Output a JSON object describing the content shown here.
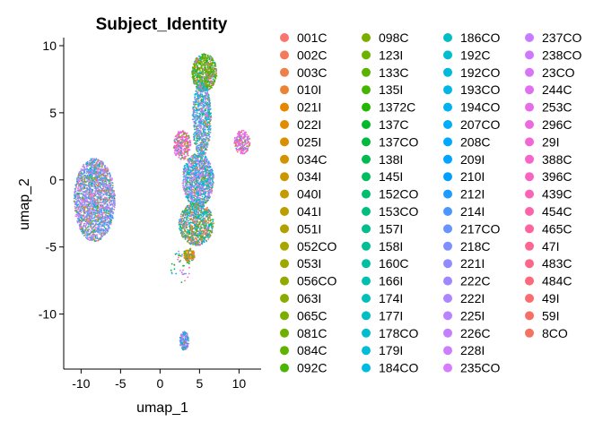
{
  "chart_data": {
    "type": "scatter",
    "title": "Subject_Identity",
    "xlabel": "umap_1",
    "ylabel": "umap_2",
    "xlim": [
      -12.2,
      12.8
    ],
    "ylim": [
      -14.1,
      10.6
    ],
    "x_ticks": [
      "-10",
      "-5",
      "0",
      "5",
      "10"
    ],
    "y_ticks": [
      "10",
      "5",
      "0",
      "-5",
      "-10"
    ],
    "x_tick_values": [
      -10,
      -5,
      0,
      5,
      10
    ],
    "y_tick_values": [
      10,
      5,
      0,
      -5,
      -10
    ],
    "grid": false,
    "legend_position": "right",
    "legend_columns": 4,
    "clusters": [
      {
        "name": "left blob",
        "cx": -8.3,
        "cy": -1.5,
        "rx": 2.6,
        "ry": 3.1,
        "n": 2200,
        "dominant": [
          "#9E8DF2",
          "#6E9BF5",
          "#EC82F0",
          "#35A9F0"
        ]
      },
      {
        "name": "top green",
        "cx": 5.6,
        "cy": 8.0,
        "rx": 1.6,
        "ry": 1.4,
        "n": 700,
        "dominant": [
          "#5BB300",
          "#2DB300",
          "#7AAE00"
        ]
      },
      {
        "name": "column upper",
        "cx": 5.3,
        "cy": 4.5,
        "rx": 1.2,
        "ry": 2.8,
        "n": 800,
        "dominant": [
          "#3AA9F0",
          "#00BFC4",
          "#9E8DF2"
        ]
      },
      {
        "name": "left pink",
        "cx": 2.8,
        "cy": 2.6,
        "rx": 1.1,
        "ry": 1.1,
        "n": 300,
        "dominant": [
          "#F067E0",
          "#E76BF3",
          "#FF62BC"
        ]
      },
      {
        "name": "right pink",
        "cx": 10.4,
        "cy": 2.8,
        "rx": 1.0,
        "ry": 0.9,
        "n": 220,
        "dominant": [
          "#F067E0",
          "#FF62BC",
          "#E76BF3"
        ]
      },
      {
        "name": "column middle",
        "cx": 4.8,
        "cy": 0.0,
        "rx": 2.0,
        "ry": 2.0,
        "n": 1200,
        "dominant": [
          "#00B4F0",
          "#9E8DF2",
          "#00BFC4",
          "#EC82F0"
        ]
      },
      {
        "name": "column lower",
        "cx": 4.6,
        "cy": -3.3,
        "rx": 2.2,
        "ry": 1.6,
        "n": 900,
        "dominant": [
          "#00C19A",
          "#00B0F6",
          "#F8766D",
          "#7CAE00"
        ]
      },
      {
        "name": "bottom orange",
        "cx": 3.7,
        "cy": -5.6,
        "rx": 0.7,
        "ry": 0.5,
        "n": 150,
        "dominant": [
          "#D89000",
          "#E58700",
          "#C99800"
        ]
      },
      {
        "name": "low cluster",
        "cx": 3.1,
        "cy": -12.0,
        "rx": 0.6,
        "ry": 0.7,
        "n": 160,
        "dominant": [
          "#9E8DF2",
          "#E76BF3",
          "#00A9FF"
        ]
      },
      {
        "name": "stray points",
        "cx": 2.5,
        "cy": -6.5,
        "rx": 1.3,
        "ry": 1.3,
        "n": 40,
        "dominant": [
          "#00BA38",
          "#619CFF",
          "#FF61C3"
        ]
      }
    ],
    "legend_title": "",
    "series": [
      {
        "name": "001C",
        "color": "#F8766D"
      },
      {
        "name": "002C",
        "color": "#F47A5C"
      },
      {
        "name": "003C",
        "color": "#F07E4B"
      },
      {
        "name": "010I",
        "color": "#EB8335"
      },
      {
        "name": "021I",
        "color": "#E58700"
      },
      {
        "name": "022I",
        "color": "#E08B00"
      },
      {
        "name": "025I",
        "color": "#DA8F00"
      },
      {
        "name": "034C",
        "color": "#D39200"
      },
      {
        "name": "034I",
        "color": "#CB9600"
      },
      {
        "name": "040I",
        "color": "#C39A00"
      },
      {
        "name": "041I",
        "color": "#BB9D00"
      },
      {
        "name": "051I",
        "color": "#B2A000"
      },
      {
        "name": "052CO",
        "color": "#A9A400"
      },
      {
        "name": "053I",
        "color": "#9FA600"
      },
      {
        "name": "056CO",
        "color": "#94A900"
      },
      {
        "name": "063I",
        "color": "#89AC00"
      },
      {
        "name": "065C",
        "color": "#7CAE00"
      },
      {
        "name": "081C",
        "color": "#6EB000"
      },
      {
        "name": "084C",
        "color": "#5EB300"
      },
      {
        "name": "092C",
        "color": "#49B500"
      },
      {
        "name": "098C",
        "color": "#7CAE00"
      },
      {
        "name": "123I",
        "color": "#6CB200"
      },
      {
        "name": "133C",
        "color": "#5BB300"
      },
      {
        "name": "135I",
        "color": "#45B500"
      },
      {
        "name": "1372C",
        "color": "#24B700"
      },
      {
        "name": "137C",
        "color": "#00B92B"
      },
      {
        "name": "137CO",
        "color": "#00BA3E"
      },
      {
        "name": "138I",
        "color": "#00BB50"
      },
      {
        "name": "145I",
        "color": "#00BC60"
      },
      {
        "name": "152CO",
        "color": "#00BD6F"
      },
      {
        "name": "153CO",
        "color": "#00BE7D"
      },
      {
        "name": "157I",
        "color": "#00BE8A"
      },
      {
        "name": "158I",
        "color": "#00BF97"
      },
      {
        "name": "160C",
        "color": "#00C0A3"
      },
      {
        "name": "166I",
        "color": "#00C0AF"
      },
      {
        "name": "174I",
        "color": "#00C0BA"
      },
      {
        "name": "177I",
        "color": "#00BFC4"
      },
      {
        "name": "178CO",
        "color": "#00BECE"
      },
      {
        "name": "179I",
        "color": "#00BDD8"
      },
      {
        "name": "184CO",
        "color": "#00BBE1"
      },
      {
        "name": "186CO",
        "color": "#00BFC4"
      },
      {
        "name": "192C",
        "color": "#00BDD0"
      },
      {
        "name": "192CO",
        "color": "#00BADB"
      },
      {
        "name": "193CO",
        "color": "#00B6E6"
      },
      {
        "name": "194CO",
        "color": "#00B2EF"
      },
      {
        "name": "207CO",
        "color": "#00ADF8"
      },
      {
        "name": "208C",
        "color": "#00A9FF"
      },
      {
        "name": "209I",
        "color": "#00A5FF"
      },
      {
        "name": "210I",
        "color": "#00A0FF"
      },
      {
        "name": "212I",
        "color": "#1D9BFF"
      },
      {
        "name": "214I",
        "color": "#4C97FF"
      },
      {
        "name": "217CO",
        "color": "#6993FF"
      },
      {
        "name": "218C",
        "color": "#7F8FFF"
      },
      {
        "name": "221I",
        "color": "#908CFF"
      },
      {
        "name": "222C",
        "color": "#9F88FF"
      },
      {
        "name": "222I",
        "color": "#AC85FF"
      },
      {
        "name": "225I",
        "color": "#B982FF"
      },
      {
        "name": "226C",
        "color": "#C47FFF"
      },
      {
        "name": "228I",
        "color": "#CE7DFF"
      },
      {
        "name": "235CO",
        "color": "#D77BFF"
      },
      {
        "name": "237CO",
        "color": "#C77CFF"
      },
      {
        "name": "238CO",
        "color": "#D078FB"
      },
      {
        "name": "23CO",
        "color": "#D874F6"
      },
      {
        "name": "244C",
        "color": "#E070EF"
      },
      {
        "name": "253C",
        "color": "#E66DE8"
      },
      {
        "name": "296C",
        "color": "#EC6ADF"
      },
      {
        "name": "29I",
        "color": "#F167D6"
      },
      {
        "name": "388C",
        "color": "#F565CC"
      },
      {
        "name": "396C",
        "color": "#F864C1"
      },
      {
        "name": "439C",
        "color": "#FB63B6"
      },
      {
        "name": "454C",
        "color": "#FC63AA"
      },
      {
        "name": "465C",
        "color": "#FD649F"
      },
      {
        "name": "47I",
        "color": "#FD6593"
      },
      {
        "name": "483C",
        "color": "#FC6787"
      },
      {
        "name": "484C",
        "color": "#FB697B"
      },
      {
        "name": "49I",
        "color": "#F96C70"
      },
      {
        "name": "59I",
        "color": "#F76E66"
      },
      {
        "name": "8CO",
        "color": "#F47260"
      }
    ]
  }
}
